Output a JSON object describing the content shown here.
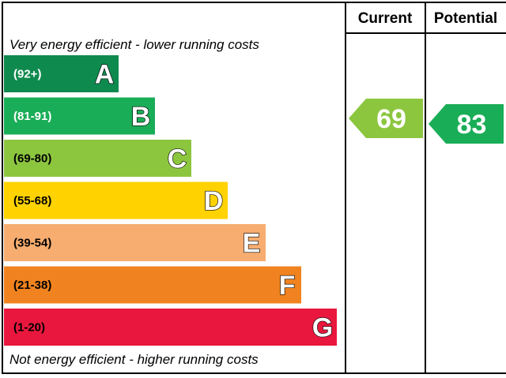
{
  "chart_data": {
    "type": "bar",
    "columns": [
      "Current",
      "Potential"
    ],
    "top_caption": "Very energy efficient - lower running costs",
    "bottom_caption": "Not energy efficient - higher running costs",
    "bands": [
      {
        "letter": "A",
        "range": "(92+)",
        "min": 92,
        "max": 100,
        "color": "#0f8a4e",
        "range_color": "#ffffff"
      },
      {
        "letter": "B",
        "range": "(81-91)",
        "min": 81,
        "max": 91,
        "color": "#1aad57",
        "range_color": "#ffffff"
      },
      {
        "letter": "C",
        "range": "(69-80)",
        "min": 69,
        "max": 80,
        "color": "#8cc63f",
        "range_color": "#000000"
      },
      {
        "letter": "D",
        "range": "(55-68)",
        "min": 55,
        "max": 68,
        "color": "#ffd200",
        "range_color": "#000000"
      },
      {
        "letter": "E",
        "range": "(39-54)",
        "min": 39,
        "max": 54,
        "color": "#f7ad6f",
        "range_color": "#000000"
      },
      {
        "letter": "F",
        "range": "(21-38)",
        "min": 21,
        "max": 38,
        "color": "#f0831f",
        "range_color": "#000000"
      },
      {
        "letter": "G",
        "range": "(1-20)",
        "min": 1,
        "max": 20,
        "color": "#e9173d",
        "range_color": "#000000"
      }
    ],
    "current": {
      "value": 69,
      "band": "C",
      "color": "#8cc63f"
    },
    "potential": {
      "value": 83,
      "band": "B",
      "color": "#1aad57"
    }
  }
}
